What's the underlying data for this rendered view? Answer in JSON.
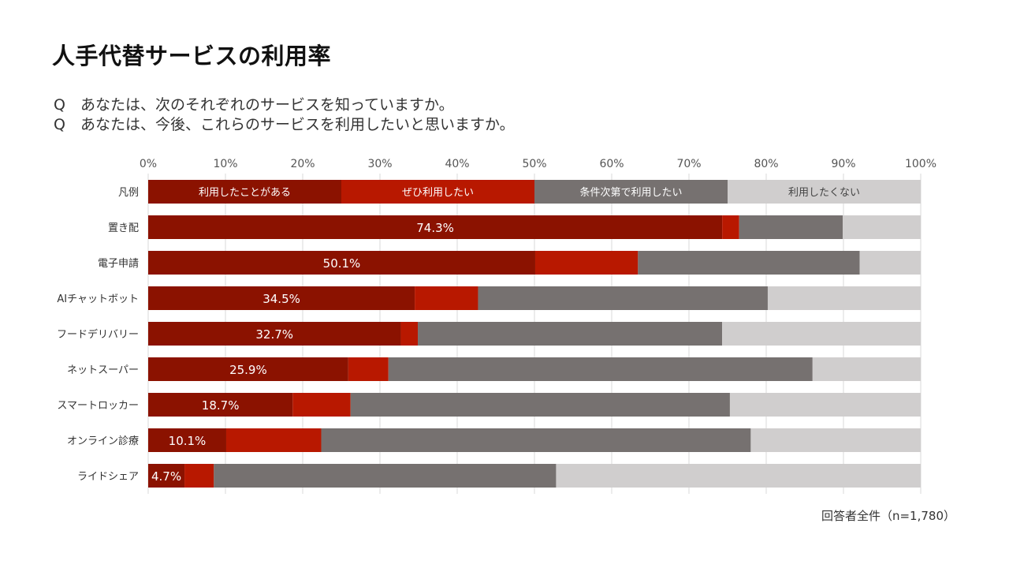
{
  "title": "人手代替サービスの利用率",
  "questions": [
    "Q　あなたは、次のそれぞれのサービスを知っていますか。",
    "Q　あなたは、今後、これらのサービスを利用したいと思いますか。"
  ],
  "footnote": "回答者全件（n=1,780）",
  "chart_data": {
    "type": "bar",
    "orientation": "horizontal",
    "stacked": true,
    "xlim": [
      0,
      100
    ],
    "x_ticks": [
      "0%",
      "10%",
      "20%",
      "30%",
      "40%",
      "50%",
      "60%",
      "70%",
      "80%",
      "90%",
      "100%"
    ],
    "grid": true,
    "legend": {
      "label": "凡例",
      "entries": [
        "利用したことがある",
        "ぜひ利用したい",
        "条件次第で利用したい",
        "利用したくない"
      ]
    },
    "colors": [
      "#8B1200",
      "#B81800",
      "#767170",
      "#D0CECE"
    ],
    "categories": [
      "置き配",
      "電子申請",
      "AIチャットボット",
      "フードデリバリー",
      "ネットスーパー",
      "スマートロッカー",
      "オンライン診療",
      "ライドシェア"
    ],
    "series": [
      {
        "name": "利用したことがある",
        "values": [
          74.3,
          50.1,
          34.5,
          32.7,
          25.9,
          18.7,
          10.1,
          4.7
        ]
      },
      {
        "name": "ぜひ利用したい",
        "values": [
          2.2,
          13.3,
          8.2,
          2.2,
          5.2,
          7.5,
          12.3,
          3.8
        ]
      },
      {
        "name": "条件次第で利用したい",
        "values": [
          13.4,
          28.7,
          37.5,
          39.4,
          54.9,
          49.1,
          55.6,
          44.3
        ]
      },
      {
        "name": "利用したくない",
        "values": [
          10.1,
          7.9,
          19.8,
          25.7,
          14.0,
          24.7,
          22.0,
          47.2
        ]
      }
    ],
    "data_labels": [
      "74.3%",
      "50.1%",
      "34.5%",
      "32.7%",
      "25.9%",
      "18.7%",
      "10.1%",
      "4.7%"
    ]
  }
}
